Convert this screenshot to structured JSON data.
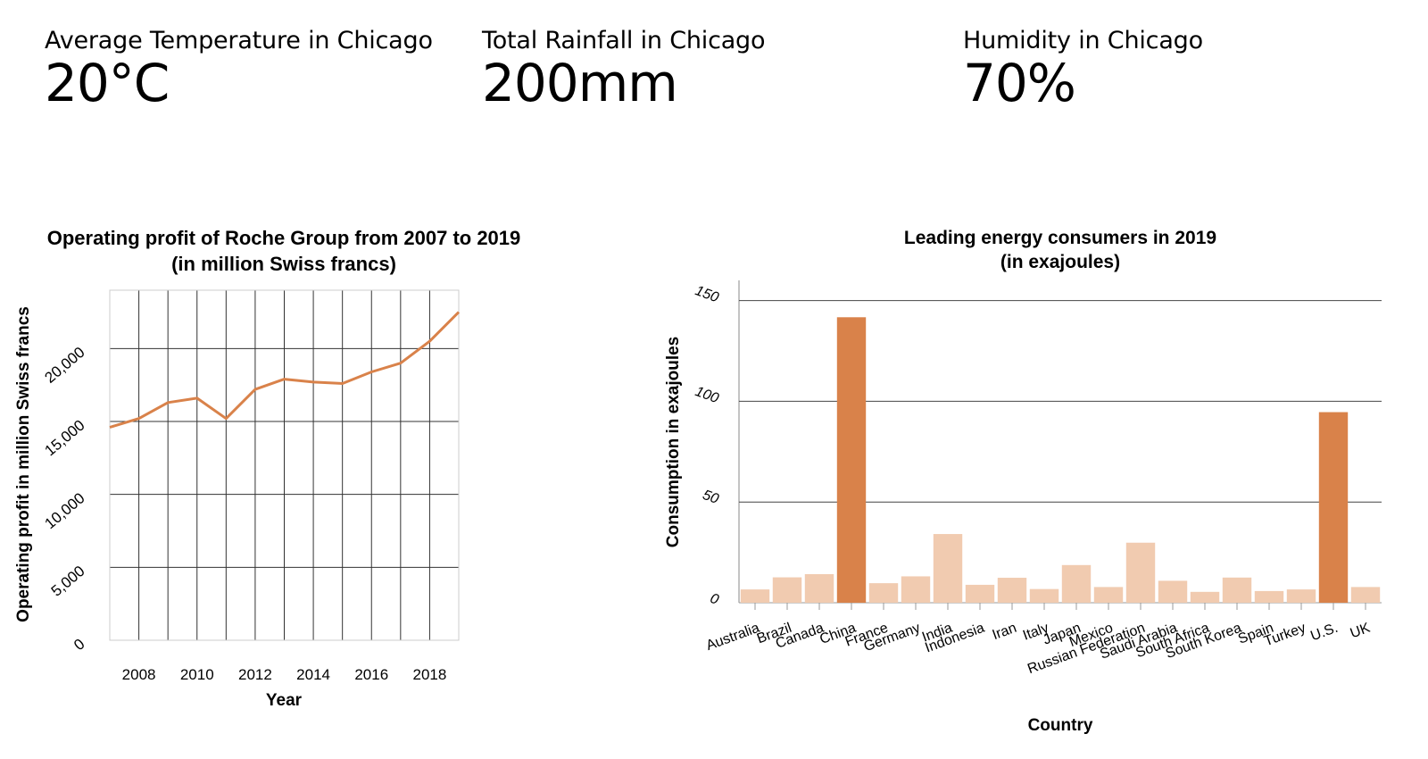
{
  "kpis": [
    {
      "label": "Average Temperature in Chicago",
      "value": "20°C"
    },
    {
      "label": "Total Rainfall in Chicago",
      "value": "200mm"
    },
    {
      "label": "Humidity in Chicago",
      "value": "70%"
    }
  ],
  "chart_data": [
    {
      "type": "line",
      "title": "Operating profit of Roche Group from 2007 to 2019",
      "subtitle": "(in million Swiss francs)",
      "xlabel": "Year",
      "ylabel": "Operating profit in million Swiss francs",
      "x": [
        2007,
        2008,
        2009,
        2010,
        2011,
        2012,
        2013,
        2014,
        2015,
        2016,
        2017,
        2018,
        2019
      ],
      "series": [
        {
          "values": [
            14600,
            15200,
            16300,
            16600,
            15200,
            17200,
            17900,
            17700,
            17600,
            18400,
            19000,
            20500,
            22500
          ]
        }
      ],
      "xticks": [
        2008,
        2010,
        2012,
        2014,
        2016,
        2018
      ],
      "yticks": [
        0,
        5000,
        10000,
        15000,
        20000
      ],
      "ytick_labels": [
        "0",
        "5,000",
        "10,000",
        "15,000",
        "20,000"
      ],
      "xlim": [
        2007,
        2019
      ],
      "ylim": [
        0,
        24000
      ],
      "grid": true,
      "color": "#d9824a"
    },
    {
      "type": "bar",
      "title": "Leading energy consumers in 2019",
      "subtitle": "(in exajoules)",
      "xlabel": "Country",
      "ylabel": "Consumption in exajoules",
      "categories": [
        "Australia",
        "Brazil",
        "Canada",
        "China",
        "France",
        "Germany",
        "India",
        "Indonesia",
        "Iran",
        "Italy",
        "Japan",
        "Mexico",
        "Russian Federation",
        "Saudi Arabia",
        "South Africa",
        "South Korea",
        "Spain",
        "Turkey",
        "U.S.",
        "UK"
      ],
      "values": [
        6.6,
        12.6,
        14.2,
        141.7,
        9.7,
        13.1,
        34.1,
        8.9,
        12.4,
        6.8,
        18.7,
        7.8,
        29.8,
        10.9,
        5.4,
        12.5,
        5.8,
        6.6,
        94.6,
        7.8
      ],
      "highlight": [
        "China",
        "U.S."
      ],
      "yticks": [
        0,
        50,
        100,
        150
      ],
      "ylim": [
        0,
        160
      ],
      "grid": true,
      "bar_color": "#f1cbb0",
      "highlight_color": "#d9824a"
    }
  ]
}
